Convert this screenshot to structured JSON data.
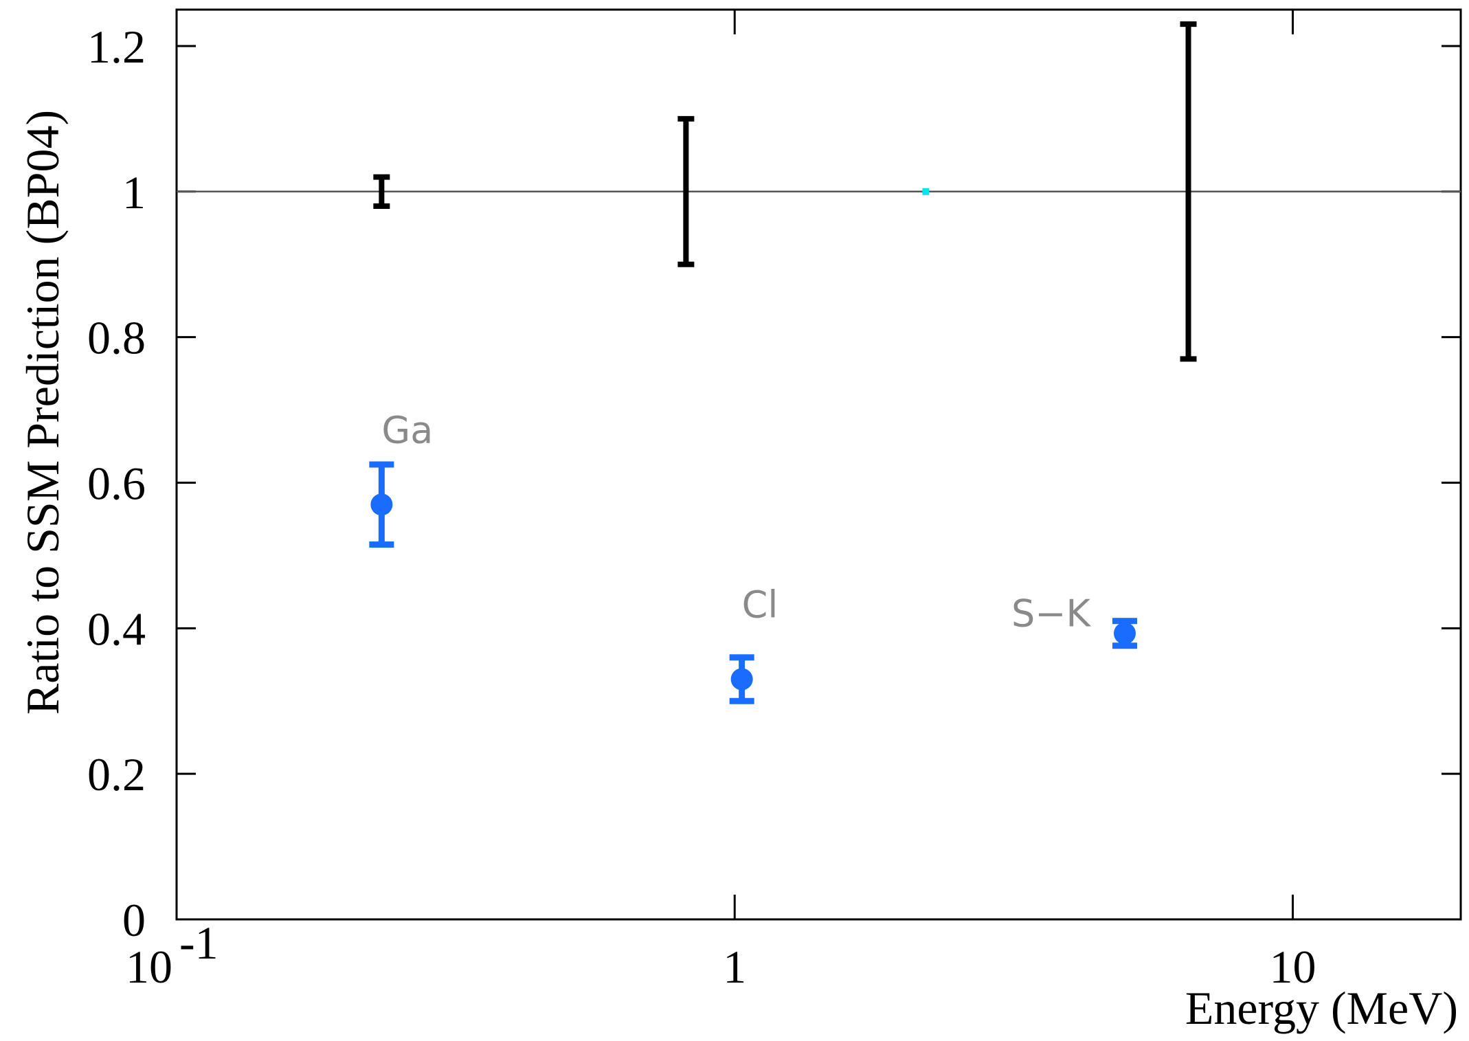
{
  "chart_data": {
    "type": "scatter",
    "xlabel": "Energy (MeV)",
    "ylabel": "Ratio to SSM Prediction (BP04)",
    "xscale": "log",
    "xlim": [
      0.1,
      20
    ],
    "ylim": [
      0,
      1.25
    ],
    "xticks": [
      {
        "value": 0.1,
        "label": "10",
        "sup": "-1"
      },
      1,
      10
    ],
    "yticks": [
      0,
      0.2,
      0.4,
      0.6,
      0.8,
      1,
      1.2
    ],
    "hline": 1,
    "series": [
      {
        "color": "#000000",
        "marker": "none",
        "x": [
          0.233,
          0.818,
          6.5
        ],
        "values": [
          1.0,
          1.0,
          1.0
        ],
        "errors": [
          0.02,
          0.1,
          0.23
        ]
      },
      {
        "color": "#1a6cff",
        "marker": "circle",
        "x": [
          0.233,
          1.03,
          5.0
        ],
        "values": [
          0.57,
          0.33,
          0.393
        ],
        "errors": [
          0.055,
          0.03,
          0.017
        ],
        "labels": [
          "Ga",
          "Cl",
          "S−K"
        ]
      },
      {
        "color": "#00e5ee",
        "marker": "dot",
        "x": [
          2.2
        ],
        "values": [
          1.0
        ]
      }
    ]
  }
}
